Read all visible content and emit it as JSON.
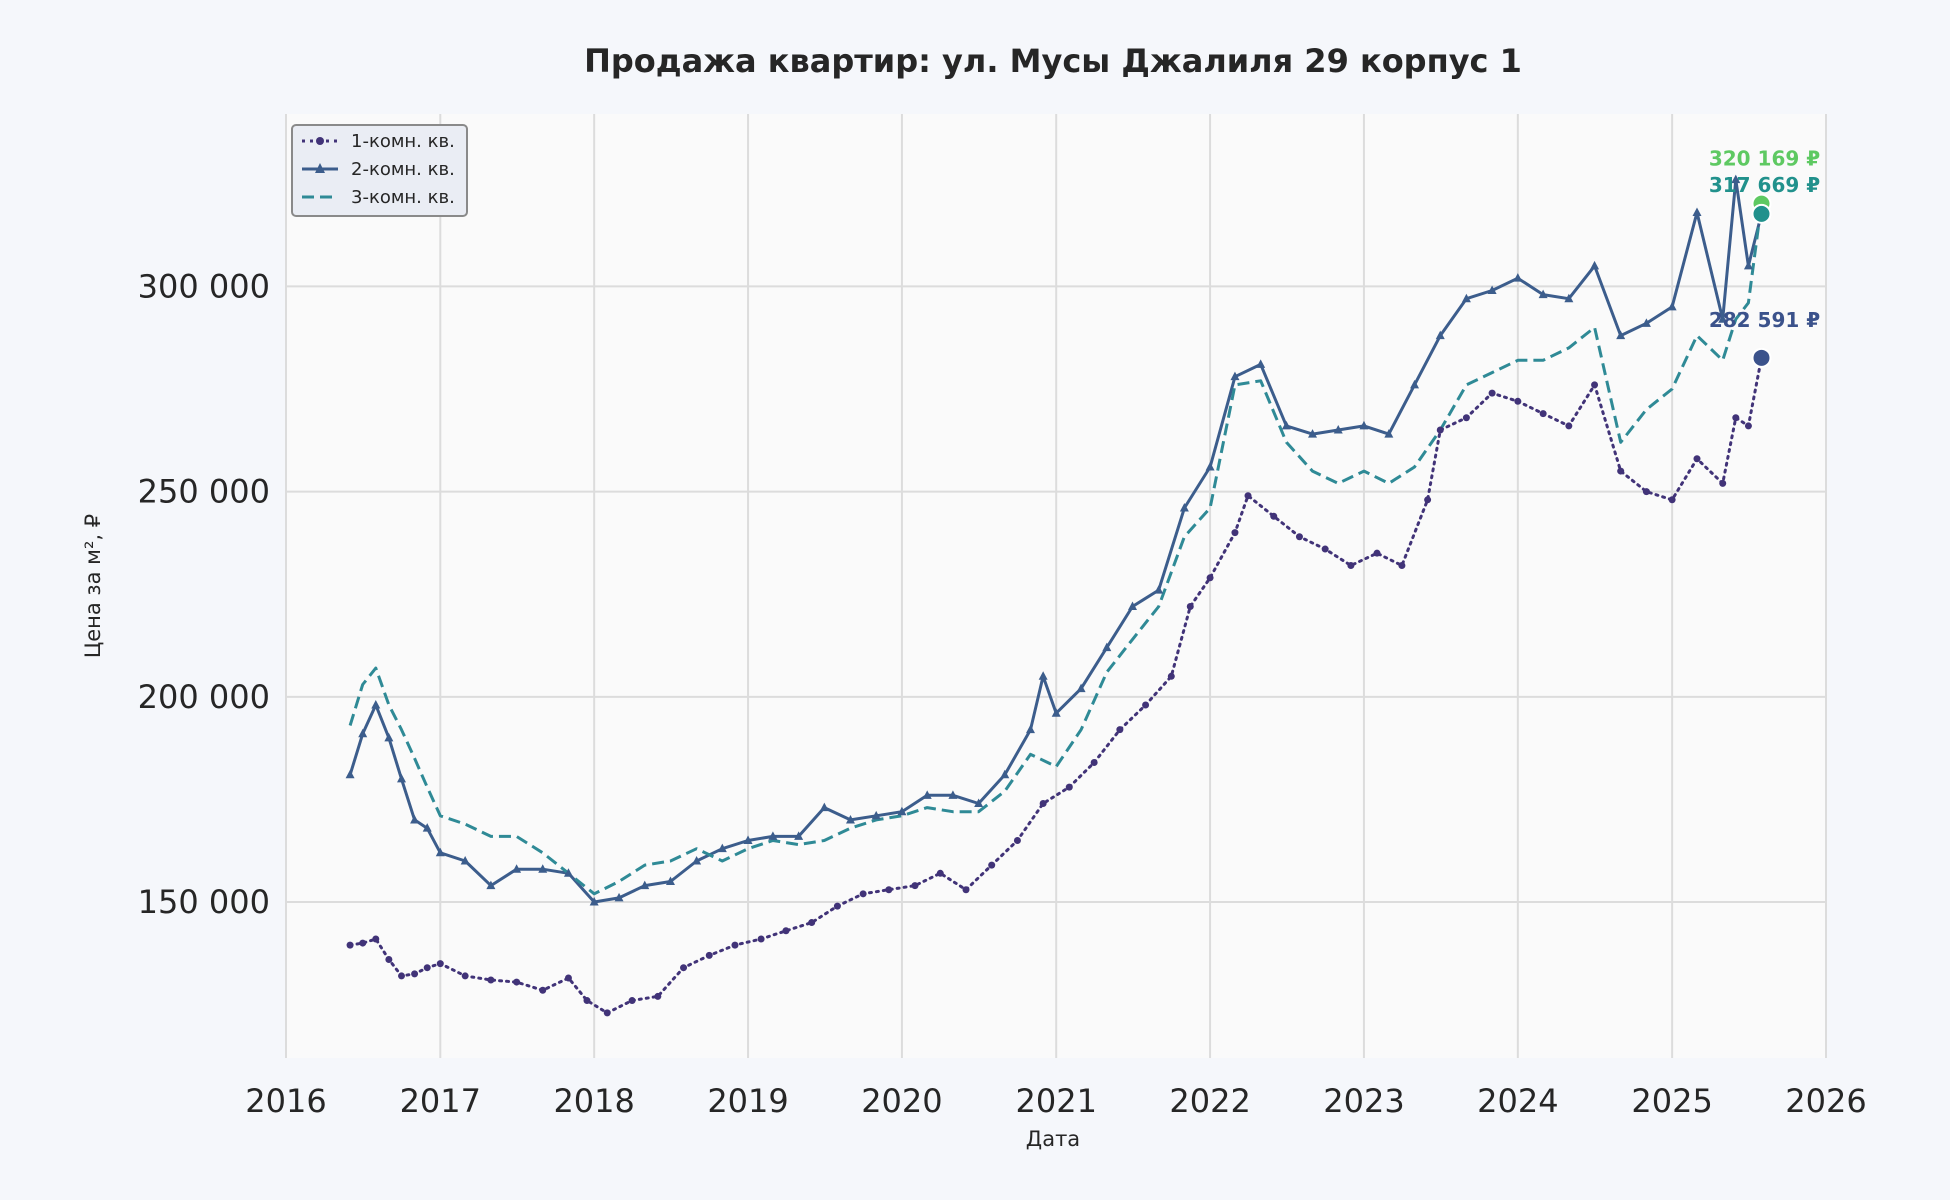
{
  "chart_data": {
    "type": "line",
    "title": "Продажа квартир: ул. Мусы Джалиля 29 корпус 1",
    "xlabel": "Дата",
    "ylabel": "Цена за м², ₽",
    "xlim": [
      "2016-01-01",
      "2026-01-01"
    ],
    "ylim": [
      112000,
      342000
    ],
    "x_ticks": [
      "2016",
      "2017",
      "2018",
      "2019",
      "2020",
      "2021",
      "2022",
      "2023",
      "2024",
      "2025",
      "2026"
    ],
    "y_ticks": [
      150000,
      200000,
      250000,
      300000
    ],
    "y_tick_labels": [
      "150 000",
      "200 000",
      "250 000",
      "300 000"
    ],
    "grid": true,
    "legend_position": "top-left",
    "series": [
      {
        "name": "1-комн. кв.",
        "color": "#413378",
        "style": "dotted",
        "marker": "circle",
        "points": [
          [
            "2016-06-01",
            139500
          ],
          [
            "2016-07-01",
            140000
          ],
          [
            "2016-08-01",
            141000
          ],
          [
            "2016-09-01",
            136000
          ],
          [
            "2016-10-01",
            132000
          ],
          [
            "2016-11-01",
            132500
          ],
          [
            "2016-12-01",
            134000
          ],
          [
            "2017-01-01",
            135000
          ],
          [
            "2017-03-01",
            132000
          ],
          [
            "2017-05-01",
            131000
          ],
          [
            "2017-07-01",
            130500
          ],
          [
            "2017-09-01",
            128500
          ],
          [
            "2017-11-01",
            131500
          ],
          [
            "2017-12-15",
            126000
          ],
          [
            "2018-02-01",
            123000
          ],
          [
            "2018-04-01",
            126000
          ],
          [
            "2018-06-01",
            127000
          ],
          [
            "2018-08-01",
            134000
          ],
          [
            "2018-10-01",
            137000
          ],
          [
            "2018-12-01",
            139500
          ],
          [
            "2019-02-01",
            141000
          ],
          [
            "2019-04-01",
            143000
          ],
          [
            "2019-06-01",
            145000
          ],
          [
            "2019-08-01",
            149000
          ],
          [
            "2019-10-01",
            152000
          ],
          [
            "2019-12-01",
            153000
          ],
          [
            "2020-02-01",
            154000
          ],
          [
            "2020-04-01",
            157000
          ],
          [
            "2020-06-01",
            153000
          ],
          [
            "2020-08-01",
            159000
          ],
          [
            "2020-10-01",
            165000
          ],
          [
            "2020-12-01",
            174000
          ],
          [
            "2021-02-01",
            178000
          ],
          [
            "2021-04-01",
            184000
          ],
          [
            "2021-06-01",
            192000
          ],
          [
            "2021-08-01",
            198000
          ],
          [
            "2021-10-01",
            205000
          ],
          [
            "2021-11-15",
            222000
          ],
          [
            "2022-01-01",
            229000
          ],
          [
            "2022-03-01",
            240000
          ],
          [
            "2022-04-01",
            249000
          ],
          [
            "2022-06-01",
            244000
          ],
          [
            "2022-08-01",
            239000
          ],
          [
            "2022-10-01",
            236000
          ],
          [
            "2022-12-01",
            232000
          ],
          [
            "2023-02-01",
            235000
          ],
          [
            "2023-04-01",
            232000
          ],
          [
            "2023-06-01",
            248000
          ],
          [
            "2023-07-01",
            265000
          ],
          [
            "2023-09-01",
            268000
          ],
          [
            "2023-11-01",
            274000
          ],
          [
            "2024-01-01",
            272000
          ],
          [
            "2024-03-01",
            269000
          ],
          [
            "2024-05-01",
            266000
          ],
          [
            "2024-07-01",
            276000
          ],
          [
            "2024-09-01",
            255000
          ],
          [
            "2024-11-01",
            250000
          ],
          [
            "2025-01-01",
            248000
          ],
          [
            "2025-03-01",
            258000
          ],
          [
            "2025-05-01",
            252000
          ],
          [
            "2025-06-01",
            268000
          ],
          [
            "2025-07-01",
            266000
          ],
          [
            "2025-08-01",
            282591
          ]
        ]
      },
      {
        "name": "2-комн. кв.",
        "color": "#3c5d8c",
        "style": "solid",
        "marker": "triangle",
        "points": [
          [
            "2016-06-01",
            181000
          ],
          [
            "2016-07-01",
            191000
          ],
          [
            "2016-08-01",
            198000
          ],
          [
            "2016-09-01",
            190000
          ],
          [
            "2016-10-01",
            180000
          ],
          [
            "2016-11-01",
            170000
          ],
          [
            "2016-12-01",
            168000
          ],
          [
            "2017-01-01",
            162000
          ],
          [
            "2017-03-01",
            160000
          ],
          [
            "2017-05-01",
            154000
          ],
          [
            "2017-07-01",
            158000
          ],
          [
            "2017-09-01",
            158000
          ],
          [
            "2017-11-01",
            157000
          ],
          [
            "2018-01-01",
            150000
          ],
          [
            "2018-03-01",
            151000
          ],
          [
            "2018-05-01",
            154000
          ],
          [
            "2018-07-01",
            155000
          ],
          [
            "2018-09-01",
            160000
          ],
          [
            "2018-11-01",
            163000
          ],
          [
            "2019-01-01",
            165000
          ],
          [
            "2019-03-01",
            166000
          ],
          [
            "2019-05-01",
            166000
          ],
          [
            "2019-07-01",
            173000
          ],
          [
            "2019-09-01",
            170000
          ],
          [
            "2019-11-01",
            171000
          ],
          [
            "2020-01-01",
            172000
          ],
          [
            "2020-03-01",
            176000
          ],
          [
            "2020-05-01",
            176000
          ],
          [
            "2020-07-01",
            174000
          ],
          [
            "2020-09-01",
            181000
          ],
          [
            "2020-11-01",
            192000
          ],
          [
            "2020-12-01",
            205000
          ],
          [
            "2021-01-01",
            196000
          ],
          [
            "2021-03-01",
            202000
          ],
          [
            "2021-05-01",
            212000
          ],
          [
            "2021-07-01",
            222000
          ],
          [
            "2021-09-01",
            226000
          ],
          [
            "2021-11-01",
            246000
          ],
          [
            "2022-01-01",
            256000
          ],
          [
            "2022-03-01",
            278000
          ],
          [
            "2022-05-01",
            281000
          ],
          [
            "2022-07-01",
            266000
          ],
          [
            "2022-09-01",
            264000
          ],
          [
            "2022-11-01",
            265000
          ],
          [
            "2023-01-01",
            266000
          ],
          [
            "2023-03-01",
            264000
          ],
          [
            "2023-05-01",
            276000
          ],
          [
            "2023-07-01",
            288000
          ],
          [
            "2023-09-01",
            297000
          ],
          [
            "2023-11-01",
            299000
          ],
          [
            "2024-01-01",
            302000
          ],
          [
            "2024-03-01",
            298000
          ],
          [
            "2024-05-01",
            297000
          ],
          [
            "2024-07-01",
            305000
          ],
          [
            "2024-09-01",
            288000
          ],
          [
            "2024-11-01",
            291000
          ],
          [
            "2025-01-01",
            295000
          ],
          [
            "2025-03-01",
            318000
          ],
          [
            "2025-05-01",
            292000
          ],
          [
            "2025-06-01",
            326000
          ],
          [
            "2025-07-01",
            305000
          ],
          [
            "2025-08-01",
            317669
          ]
        ]
      },
      {
        "name": "3-комн. кв.",
        "color": "#2f8a96",
        "style": "dashed",
        "marker": "none",
        "points": [
          [
            "2016-06-01",
            193000
          ],
          [
            "2016-07-01",
            203000
          ],
          [
            "2016-08-01",
            207000
          ],
          [
            "2016-09-01",
            198000
          ],
          [
            "2016-10-01",
            192000
          ],
          [
            "2016-11-01",
            185000
          ],
          [
            "2016-12-01",
            178000
          ],
          [
            "2017-01-01",
            171000
          ],
          [
            "2017-03-01",
            169000
          ],
          [
            "2017-05-01",
            166000
          ],
          [
            "2017-07-01",
            166000
          ],
          [
            "2017-09-01",
            162000
          ],
          [
            "2017-11-01",
            157000
          ],
          [
            "2018-01-01",
            152000
          ],
          [
            "2018-03-01",
            155000
          ],
          [
            "2018-05-01",
            159000
          ],
          [
            "2018-07-01",
            160000
          ],
          [
            "2018-09-01",
            163000
          ],
          [
            "2018-11-01",
            160000
          ],
          [
            "2019-01-01",
            163000
          ],
          [
            "2019-03-01",
            165000
          ],
          [
            "2019-05-01",
            164000
          ],
          [
            "2019-07-01",
            165000
          ],
          [
            "2019-09-01",
            168000
          ],
          [
            "2019-11-01",
            170000
          ],
          [
            "2020-01-01",
            171000
          ],
          [
            "2020-03-01",
            173000
          ],
          [
            "2020-05-01",
            172000
          ],
          [
            "2020-07-01",
            172000
          ],
          [
            "2020-09-01",
            177000
          ],
          [
            "2020-11-01",
            186000
          ],
          [
            "2021-01-01",
            183000
          ],
          [
            "2021-03-01",
            192000
          ],
          [
            "2021-05-01",
            206000
          ],
          [
            "2021-07-01",
            214000
          ],
          [
            "2021-09-01",
            222000
          ],
          [
            "2021-11-01",
            239000
          ],
          [
            "2022-01-01",
            246000
          ],
          [
            "2022-03-01",
            276000
          ],
          [
            "2022-05-01",
            277000
          ],
          [
            "2022-07-01",
            262000
          ],
          [
            "2022-09-01",
            255000
          ],
          [
            "2022-11-01",
            252000
          ],
          [
            "2023-01-01",
            255000
          ],
          [
            "2023-03-01",
            252000
          ],
          [
            "2023-05-01",
            256000
          ],
          [
            "2023-07-01",
            265000
          ],
          [
            "2023-09-01",
            276000
          ],
          [
            "2023-11-01",
            279000
          ],
          [
            "2024-01-01",
            282000
          ],
          [
            "2024-03-01",
            282000
          ],
          [
            "2024-05-01",
            285000
          ],
          [
            "2024-07-01",
            290000
          ],
          [
            "2024-09-01",
            262000
          ],
          [
            "2024-11-01",
            270000
          ],
          [
            "2025-01-01",
            275000
          ],
          [
            "2025-03-01",
            288000
          ],
          [
            "2025-05-01",
            282000
          ],
          [
            "2025-06-01",
            292000
          ],
          [
            "2025-07-01",
            296000
          ],
          [
            "2025-08-01",
            320169
          ]
        ]
      }
    ],
    "end_labels": [
      {
        "text": "320 169 ₽",
        "color": "#5ec962",
        "value": 320169,
        "date": "2025-08-01"
      },
      {
        "text": "317 669 ₽",
        "color": "#21918c",
        "value": 317669,
        "date": "2025-08-01"
      },
      {
        "text": "282 591 ₽",
        "color": "#3b528b",
        "value": 282591,
        "date": "2025-08-01"
      }
    ]
  }
}
